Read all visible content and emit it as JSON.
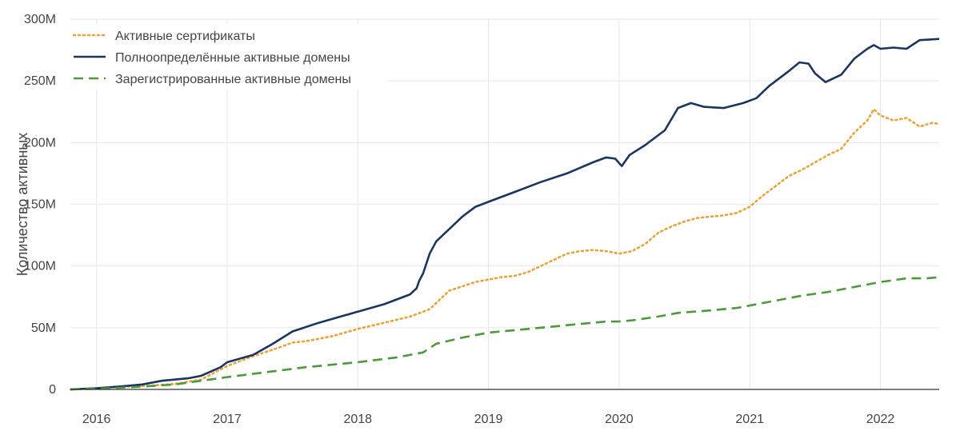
{
  "chart_data": {
    "type": "line",
    "title": "",
    "xlabel": "",
    "ylabel": "Количество активных",
    "xlim": [
      2015.8,
      2022.45
    ],
    "ylim": [
      0,
      300000000
    ],
    "grid": true,
    "legend_position": "top-left",
    "x_ticks": [
      {
        "value": 2016,
        "label": "2016"
      },
      {
        "value": 2017,
        "label": "2017"
      },
      {
        "value": 2018,
        "label": "2018"
      },
      {
        "value": 2019,
        "label": "2019"
      },
      {
        "value": 2020,
        "label": "2020"
      },
      {
        "value": 2021,
        "label": "2021"
      },
      {
        "value": 2022,
        "label": "2022"
      }
    ],
    "y_ticks": [
      {
        "value": 0,
        "label": "0"
      },
      {
        "value": 50000000,
        "label": "50M"
      },
      {
        "value": 100000000,
        "label": "100M"
      },
      {
        "value": 150000000,
        "label": "150M"
      },
      {
        "value": 200000000,
        "label": "200M"
      },
      {
        "value": 250000000,
        "label": "250M"
      },
      {
        "value": 300000000,
        "label": "300M"
      }
    ],
    "series": [
      {
        "name": "Активные сертификаты",
        "color": "#e8a33a",
        "style": "dotted",
        "x": [
          2015.8,
          2016.0,
          2016.2,
          2016.4,
          2016.6,
          2016.8,
          2017.0,
          2017.2,
          2017.4,
          2017.5,
          2017.6,
          2017.8,
          2018.0,
          2018.2,
          2018.4,
          2018.55,
          2018.7,
          2018.9,
          2019.0,
          2019.1,
          2019.2,
          2019.3,
          2019.4,
          2019.5,
          2019.6,
          2019.7,
          2019.8,
          2019.9,
          2020.0,
          2020.1,
          2020.2,
          2020.3,
          2020.4,
          2020.5,
          2020.6,
          2020.7,
          2020.8,
          2020.9,
          2021.0,
          2021.1,
          2021.2,
          2021.3,
          2021.4,
          2021.5,
          2021.6,
          2021.7,
          2021.8,
          2021.9,
          2021.95,
          2022.0,
          2022.1,
          2022.2,
          2022.3,
          2022.4,
          2022.45
        ],
        "values": [
          0,
          1000000,
          2000000,
          3000000,
          4500000,
          8000000,
          19000000,
          27000000,
          34000000,
          38000000,
          39000000,
          43000000,
          49000000,
          54000000,
          59000000,
          65000000,
          80000000,
          87000000,
          89000000,
          91000000,
          92000000,
          95000000,
          100000000,
          105000000,
          110000000,
          112000000,
          113000000,
          112000000,
          110000000,
          112000000,
          118000000,
          127000000,
          132000000,
          136000000,
          139000000,
          140000000,
          141000000,
          143000000,
          148000000,
          157000000,
          165000000,
          173000000,
          178000000,
          184000000,
          190000000,
          195000000,
          208000000,
          218000000,
          227000000,
          222000000,
          218000000,
          220000000,
          213000000,
          216000000,
          215000000
        ]
      },
      {
        "name": "Полноопределённые активные домены",
        "color": "#1c355e",
        "style": "solid",
        "x": [
          2015.8,
          2016.0,
          2016.2,
          2016.35,
          2016.5,
          2016.7,
          2016.8,
          2016.95,
          2017.0,
          2017.2,
          2017.35,
          2017.5,
          2017.7,
          2017.9,
          2018.0,
          2018.2,
          2018.4,
          2018.45,
          2018.47,
          2018.5,
          2018.55,
          2018.6,
          2018.7,
          2018.8,
          2018.9,
          2019.0,
          2019.2,
          2019.4,
          2019.6,
          2019.8,
          2019.9,
          2019.97,
          2020.02,
          2020.08,
          2020.2,
          2020.35,
          2020.45,
          2020.55,
          2020.65,
          2020.8,
          2020.95,
          2021.05,
          2021.15,
          2021.3,
          2021.38,
          2021.45,
          2021.5,
          2021.58,
          2021.7,
          2021.8,
          2021.9,
          2021.95,
          2022.0,
          2022.1,
          2022.2,
          2022.3,
          2022.45
        ],
        "values": [
          0,
          1000000,
          2500000,
          4000000,
          7000000,
          9000000,
          11000000,
          18000000,
          22000000,
          28000000,
          37000000,
          47000000,
          54000000,
          60000000,
          63000000,
          69000000,
          77000000,
          82000000,
          88000000,
          94000000,
          110000000,
          120000000,
          130000000,
          140000000,
          148000000,
          152000000,
          160000000,
          168000000,
          175000000,
          184000000,
          188000000,
          187000000,
          181000000,
          190000000,
          198000000,
          210000000,
          228000000,
          232000000,
          229000000,
          228000000,
          232000000,
          236000000,
          246000000,
          258000000,
          265000000,
          264000000,
          256000000,
          249000000,
          255000000,
          268000000,
          276000000,
          279000000,
          276000000,
          277000000,
          276000000,
          283000000,
          284000000
        ]
      },
      {
        "name": "Зарегистрированные активные домены",
        "color": "#4e9a3a",
        "style": "dashed",
        "x": [
          2015.8,
          2016.0,
          2016.3,
          2016.6,
          2016.8,
          2017.0,
          2017.3,
          2017.6,
          2018.0,
          2018.3,
          2018.5,
          2018.6,
          2018.8,
          2019.0,
          2019.3,
          2019.6,
          2019.9,
          2020.0,
          2020.1,
          2020.3,
          2020.45,
          2020.7,
          2020.9,
          2021.0,
          2021.2,
          2021.4,
          2021.6,
          2021.7,
          2021.8,
          2022.0,
          2022.2,
          2022.35,
          2022.45
        ],
        "values": [
          0,
          500000,
          2000000,
          4000000,
          7000000,
          10000000,
          14000000,
          18000000,
          22000000,
          26000000,
          30000000,
          37000000,
          42000000,
          46000000,
          49000000,
          52000000,
          55000000,
          55000000,
          56000000,
          59000000,
          62000000,
          64000000,
          66000000,
          68000000,
          72000000,
          76000000,
          79000000,
          81000000,
          83000000,
          87000000,
          90000000,
          90000000,
          91000000
        ]
      }
    ]
  }
}
